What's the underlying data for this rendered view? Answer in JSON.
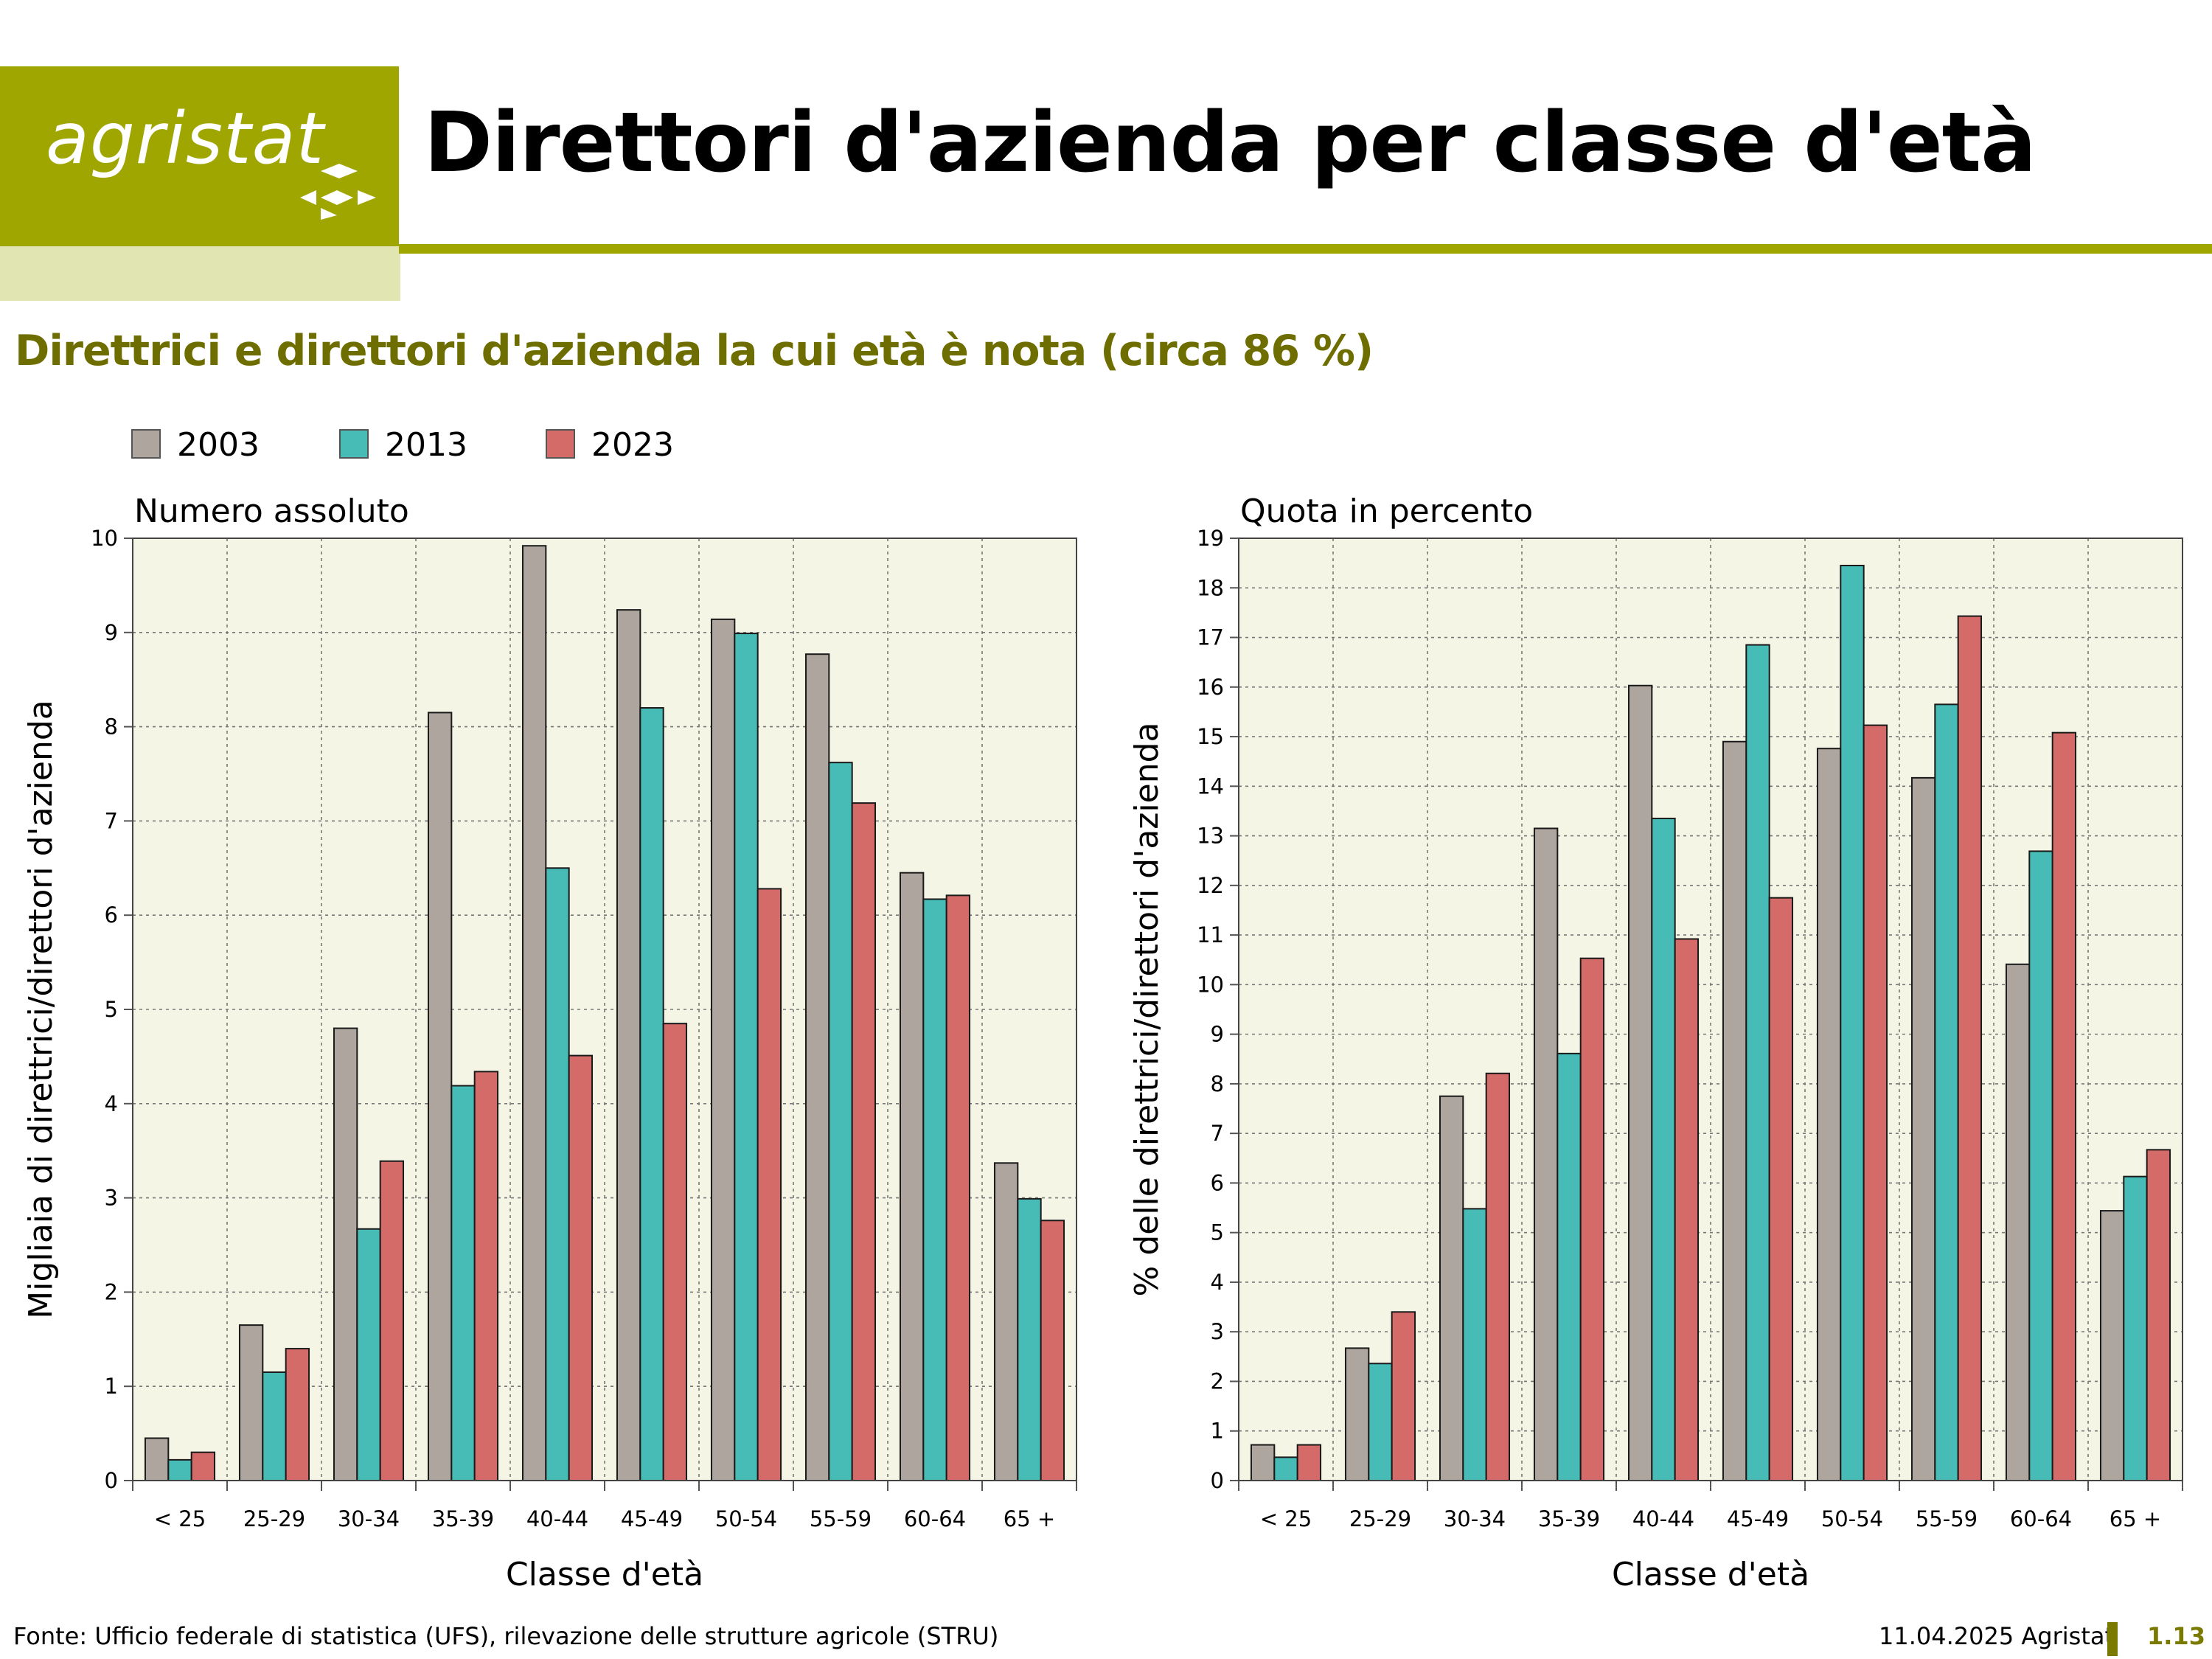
{
  "header": {
    "logo_text": "agristat",
    "title": "Direttori d'azienda per classe d'età"
  },
  "subtitle": "Direttrici e direttori d'azienda la cui età è nota (circa 86 %)",
  "legend": [
    {
      "label": "2003",
      "color": "#ada59e"
    },
    {
      "label": "2013",
      "color": "#47bcb6"
    },
    {
      "label": "2023",
      "color": "#d46b69"
    }
  ],
  "chart_data": [
    {
      "type": "bar",
      "title": "Numero assoluto",
      "xlabel": "Classe d'età",
      "ylabel": "Migliaia di direttrici/direttori d'azienda",
      "categories": [
        "< 25",
        "25-29",
        "30-34",
        "35-39",
        "40-44",
        "45-49",
        "50-54",
        "55-59",
        "60-64",
        "65 +"
      ],
      "ylim": [
        0,
        10
      ],
      "yticks": [
        "0",
        "1",
        "2",
        "3",
        "4",
        "5",
        "6",
        "7",
        "8",
        "9",
        "10"
      ],
      "grid": true,
      "series": [
        {
          "name": "2003",
          "color": "#ada59e",
          "values": [
            0.45,
            1.65,
            4.8,
            8.15,
            9.92,
            9.24,
            9.14,
            8.77,
            6.45,
            3.37
          ]
        },
        {
          "name": "2013",
          "color": "#47bcb6",
          "values": [
            0.22,
            1.15,
            2.67,
            4.19,
            6.5,
            8.2,
            8.99,
            7.62,
            6.17,
            2.99
          ]
        },
        {
          "name": "2023",
          "color": "#d46b69",
          "values": [
            0.3,
            1.4,
            3.39,
            4.34,
            4.51,
            4.85,
            6.28,
            7.19,
            6.21,
            2.76
          ]
        }
      ]
    },
    {
      "type": "bar",
      "title": "Quota in percento",
      "xlabel": "Classe d'età",
      "ylabel": "% delle direttrici/direttori d'azienda",
      "categories": [
        "< 25",
        "25-29",
        "30-34",
        "35-39",
        "40-44",
        "45-49",
        "50-54",
        "55-59",
        "60-64",
        "65 +"
      ],
      "ylim": [
        0,
        19
      ],
      "yticks": [
        "0",
        "1",
        "2",
        "3",
        "4",
        "5",
        "6",
        "7",
        "8",
        "9",
        "10",
        "11",
        "12",
        "13",
        "14",
        "15",
        "16",
        "17",
        "18",
        "19"
      ],
      "grid": true,
      "series": [
        {
          "name": "2003",
          "color": "#ada59e",
          "values": [
            0.72,
            2.67,
            7.75,
            13.15,
            16.03,
            14.9,
            14.76,
            14.17,
            10.41,
            5.44
          ]
        },
        {
          "name": "2013",
          "color": "#47bcb6",
          "values": [
            0.47,
            2.36,
            5.48,
            8.61,
            13.35,
            16.85,
            18.45,
            15.65,
            12.69,
            6.13
          ]
        },
        {
          "name": "2023",
          "color": "#d46b69",
          "values": [
            0.72,
            3.4,
            8.21,
            10.53,
            10.92,
            11.75,
            15.23,
            17.43,
            15.08,
            6.67
          ]
        }
      ]
    }
  ],
  "footer": {
    "source": "Fonte: Ufficio federale di statistica (UFS), rilevazione delle strutture agricole (STRU)",
    "date": "11.04.2025 Agristat",
    "page": "1.13"
  }
}
